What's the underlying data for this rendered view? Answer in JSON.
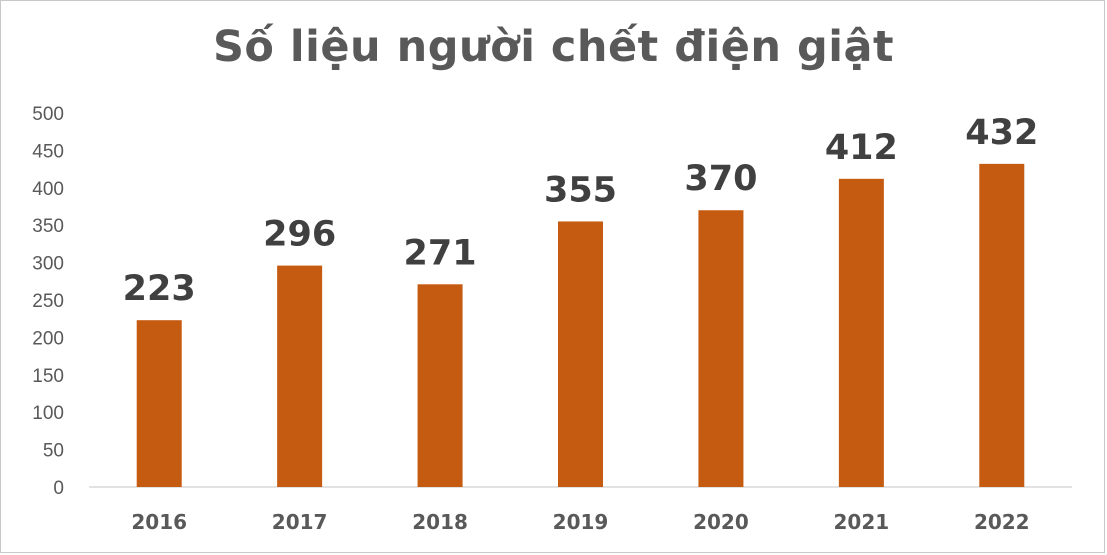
{
  "chart_data": {
    "type": "bar",
    "title": "Số liệu người chết điện giật",
    "categories": [
      "2016",
      "2017",
      "2018",
      "2019",
      "2020",
      "2021",
      "2022"
    ],
    "values": [
      223,
      296,
      271,
      355,
      370,
      412,
      432
    ],
    "data_labels": [
      "223",
      "296",
      "271",
      "355",
      "370",
      "412",
      "432"
    ],
    "yticks": [
      "0",
      "50",
      "100",
      "150",
      "200",
      "250",
      "300",
      "350",
      "400",
      "450",
      "500"
    ],
    "ylim": [
      0,
      500
    ],
    "xlabel": "",
    "ylabel": "",
    "grid": false,
    "legend": "none",
    "bar_color": "#c55a11"
  }
}
